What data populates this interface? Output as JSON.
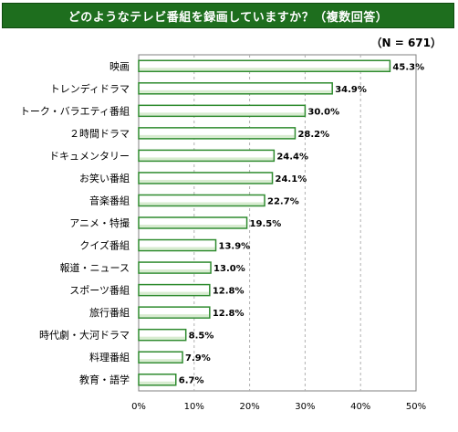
{
  "title": "どのようなテレビ番組を録画していますか？（複数回答）",
  "sample_size": "（N = 671）",
  "colors": {
    "title_bg": "#1e6e1e",
    "bar_fill": "#ffffff",
    "bar_stroke": "#2e8b2e",
    "bar_shade": "#d8ecd0"
  },
  "chart_data": {
    "type": "bar",
    "orientation": "horizontal",
    "categories": [
      "映画",
      "トレンディドラマ",
      "トーク・バラエティ番組",
      "２時間ドラマ",
      "ドキュメンタリー",
      "お笑い番組",
      "音楽番組",
      "アニメ・特撮",
      "クイズ番組",
      "報道・ニュース",
      "スポーツ番組",
      "旅行番組",
      "時代劇・大河ドラマ",
      "料理番組",
      "教育・語学"
    ],
    "values": [
      45.3,
      34.9,
      30.0,
      28.2,
      24.4,
      24.1,
      22.7,
      19.5,
      13.9,
      13.0,
      12.8,
      12.8,
      8.5,
      7.9,
      6.7
    ],
    "value_labels": [
      "45.3%",
      "34.9%",
      "30.0%",
      "28.2%",
      "24.4%",
      "24.1%",
      "22.7%",
      "19.5%",
      "13.9%",
      "13.0%",
      "12.8%",
      "12.8%",
      "8.5%",
      "7.9%",
      "6.7%"
    ],
    "xlim": [
      0,
      50
    ],
    "xticks": [
      "0%",
      "10%",
      "20%",
      "30%",
      "40%",
      "50%"
    ],
    "grid": true
  }
}
